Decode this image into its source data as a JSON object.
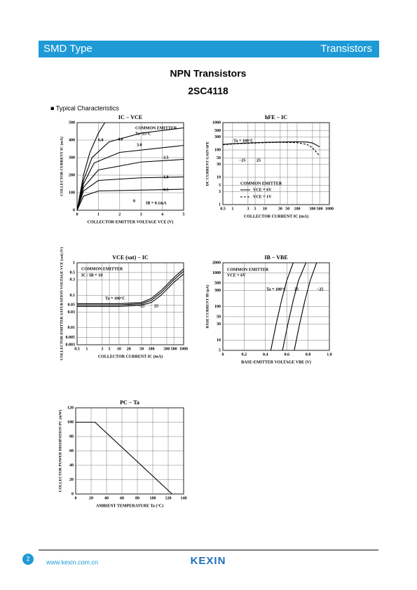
{
  "header": {
    "left": "SMD Type",
    "right": "Transistors"
  },
  "title": "NPN  Transistors",
  "part": "2SC4118",
  "section": "■ Typical  Characteristics",
  "charts": [
    {
      "type": "line",
      "title": "IC − VCE",
      "x_label": "COLLECTOR-EMITTER VOLTAGE  VCE  (V)",
      "y_label": "COLLECTOR CURRENT  IC  (mA)",
      "xlim": [
        0,
        5
      ],
      "ylim": [
        0,
        500
      ],
      "xticks": [
        0,
        1,
        2,
        3,
        4,
        5
      ],
      "yticks": [
        0,
        100,
        200,
        300,
        400,
        500
      ],
      "annotations": [
        "COMMON EMITTER",
        "Ta=25°C",
        "0",
        "IB = 0.1mA"
      ],
      "series": [
        {
          "name": "6.0",
          "x": [
            0,
            0.3,
            0.6,
            1,
            1.3
          ],
          "values": [
            0,
            200,
            330,
            440,
            500
          ]
        },
        {
          "name": "4.0",
          "x": [
            0,
            0.3,
            0.7,
            1.5,
            3,
            5
          ],
          "values": [
            0,
            170,
            300,
            390,
            440,
            470
          ]
        },
        {
          "name": "3.0",
          "x": [
            0,
            0.3,
            0.8,
            2,
            5
          ],
          "values": [
            0,
            150,
            270,
            330,
            370
          ]
        },
        {
          "name": "2.5",
          "x": [
            0,
            0.3,
            1,
            3,
            5
          ],
          "values": [
            0,
            130,
            230,
            275,
            290
          ]
        },
        {
          "name": "1.0",
          "x": [
            0,
            0.3,
            1,
            3,
            5
          ],
          "values": [
            0,
            110,
            170,
            185,
            190
          ]
        },
        {
          "name": "0.5",
          "x": [
            0,
            0.3,
            1,
            5
          ],
          "values": [
            0,
            80,
            110,
            120
          ]
        }
      ]
    },
    {
      "type": "line",
      "title": "hFE − IC",
      "x_label": "COLLECTOR CURRENT  IC  (mA)",
      "y_label": "DC CURRENT GAIN  hFE",
      "xlog": true,
      "ylog": true,
      "xlim": [
        0.5,
        1000
      ],
      "ylim": [
        1,
        1000
      ],
      "xticks": [
        0.5,
        1,
        3,
        5,
        10,
        30,
        50,
        100,
        300,
        500,
        1000
      ],
      "yticks": [
        1,
        3,
        5,
        10,
        30,
        50,
        100,
        300,
        500,
        1000
      ],
      "annotations": [
        "COMMON EMITTER",
        "Ta = 100°C",
        "−25",
        "25"
      ],
      "series": [
        {
          "name": "VCE = 6V",
          "x": [
            0.5,
            1,
            3,
            10,
            30,
            100,
            200,
            300,
            500
          ],
          "values": [
            160,
            170,
            180,
            190,
            195,
            200,
            195,
            180,
            130
          ]
        },
        {
          "name": "VCE = 1V",
          "x": [
            0.5,
            1,
            3,
            10,
            30,
            100,
            200,
            300,
            500
          ],
          "values": [
            155,
            165,
            175,
            185,
            190,
            185,
            160,
            120,
            60
          ]
        }
      ]
    },
    {
      "type": "line",
      "title": "VCE (sat) − IC",
      "x_label": "COLLECTOR CURRENT  IC  (mA)",
      "y_label": "COLLECTOR-EMITTER SATURATION VOLTAGE  VCE (sat)  (V)",
      "xlog": true,
      "ylog": true,
      "xlim": [
        0.5,
        1000
      ],
      "ylim": [
        0.003,
        1
      ],
      "xticks": [
        0.5,
        1,
        3,
        5,
        10,
        20,
        50,
        100,
        300,
        500,
        1000
      ],
      "yticks": [
        0.003,
        0.005,
        0.01,
        0.03,
        0.05,
        0.1,
        0.3,
        0.5,
        1
      ],
      "annotations": [
        "COMMON EMITTER",
        "IC / IB = 10"
      ],
      "series": [
        {
          "name": "Ta = 100°C",
          "x": [
            0.5,
            1,
            10,
            50,
            100,
            200,
            500,
            1000
          ],
          "values": [
            0.055,
            0.055,
            0.055,
            0.06,
            0.08,
            0.14,
            0.35,
            0.65
          ]
        },
        {
          "name": "25",
          "x": [
            0.5,
            1,
            10,
            50,
            100,
            200,
            500,
            1000
          ],
          "values": [
            0.05,
            0.05,
            0.05,
            0.055,
            0.07,
            0.12,
            0.3,
            0.55
          ]
        },
        {
          "name": "−25",
          "x": [
            0.5,
            1,
            10,
            50,
            100,
            200,
            500,
            1000
          ],
          "values": [
            0.045,
            0.045,
            0.045,
            0.05,
            0.06,
            0.1,
            0.25,
            0.45
          ]
        }
      ]
    },
    {
      "type": "line",
      "title": "IB − VBE",
      "x_label": "BASE-EMITTER VOLTAGE  VBE  (V)",
      "y_label": "BASE CURRENT  IB  (μA)",
      "ylog": true,
      "xlim": [
        0,
        1.0
      ],
      "ylim": [
        5,
        2000
      ],
      "xticks": [
        0,
        0.2,
        0.4,
        0.6,
        0.8,
        {
          "value": 1,
          "label": "1.0"
        }
      ],
      "yticks": [
        5,
        10,
        30,
        50,
        100,
        300,
        500,
        1000,
        2000
      ],
      "annotations": [
        "COMMON EMITTER",
        "VCE = 6V"
      ],
      "series": [
        {
          "name": "Ta = 100°C",
          "x": [
            0.45,
            0.5,
            0.55,
            0.6,
            0.66
          ],
          "values": [
            5,
            30,
            150,
            600,
            2000
          ]
        },
        {
          "name": "25",
          "x": [
            0.56,
            0.61,
            0.66,
            0.71,
            0.78
          ],
          "values": [
            5,
            30,
            150,
            600,
            2000
          ]
        },
        {
          "name": "−25",
          "x": [
            0.67,
            0.72,
            0.77,
            0.82,
            0.88
          ],
          "values": [
            5,
            30,
            150,
            600,
            2000
          ]
        }
      ]
    },
    {
      "type": "line",
      "title": "PC − Ta",
      "x_label": "AMBIENT TEMPERATURE   Ta   (°C)",
      "y_label": "COLLECTOR POWER DISSIPATION  PC  (mW)",
      "xlim": [
        0,
        140
      ],
      "ylim": [
        0,
        120
      ],
      "xticks": [
        0,
        20,
        40,
        60,
        80,
        100,
        120,
        140
      ],
      "yticks": [
        0,
        20,
        40,
        60,
        80,
        100,
        120
      ],
      "annotations": [],
      "series": [
        {
          "x": [
            0,
            25,
            125
          ],
          "values": [
            100,
            100,
            0
          ]
        }
      ]
    }
  ],
  "footer": {
    "page": "2",
    "url": "www.kexin.com.cn",
    "logo": "KEXIN"
  }
}
